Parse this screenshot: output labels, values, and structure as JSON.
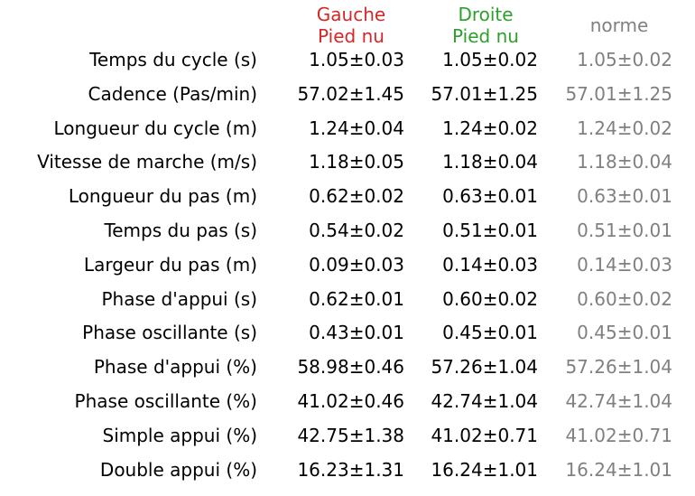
{
  "header": {
    "left": {
      "line1": "Gauche",
      "line2": "Pied nu"
    },
    "right": {
      "line1": "Droite",
      "line2": "Pied nu"
    },
    "norm": {
      "line1": "norme"
    }
  },
  "colors": {
    "left_header": "#d62728",
    "right_header": "#2ca02c",
    "norm": "#808080",
    "text": "#000000"
  },
  "rows": [
    {
      "label": "Temps du cycle (s)",
      "left": "1.05±0.03",
      "right": "1.05±0.02",
      "norm": "1.05±0.02"
    },
    {
      "label": "Cadence (Pas/min)",
      "left": "57.02±1.45",
      "right": "57.01±1.25",
      "norm": "57.01±1.25"
    },
    {
      "label": "Longueur du cycle (m)",
      "left": "1.24±0.04",
      "right": "1.24±0.02",
      "norm": "1.24±0.02"
    },
    {
      "label": "Vitesse de marche (m/s)",
      "left": "1.18±0.05",
      "right": "1.18±0.04",
      "norm": "1.18±0.04"
    },
    {
      "label": "Longueur du pas (m)",
      "left": "0.62±0.02",
      "right": "0.63±0.01",
      "norm": "0.63±0.01"
    },
    {
      "label": "Temps du pas (s)",
      "left": "0.54±0.02",
      "right": "0.51±0.01",
      "norm": "0.51±0.01"
    },
    {
      "label": "Largeur du pas (m)",
      "left": "0.09±0.03",
      "right": "0.14±0.03",
      "norm": "0.14±0.03"
    },
    {
      "label": "Phase d'appui (s)",
      "left": "0.62±0.01",
      "right": "0.60±0.02",
      "norm": "0.60±0.02"
    },
    {
      "label": "Phase oscillante (s)",
      "left": "0.43±0.01",
      "right": "0.45±0.01",
      "norm": "0.45±0.01"
    },
    {
      "label": "Phase d'appui (%)",
      "left": "58.98±0.46",
      "right": "57.26±1.04",
      "norm": "57.26±1.04"
    },
    {
      "label": "Phase oscillante (%)",
      "left": "41.02±0.46",
      "right": "42.74±1.04",
      "norm": "42.74±1.04"
    },
    {
      "label": "Simple appui (%)",
      "left": "42.75±1.38",
      "right": "41.02±0.71",
      "norm": "41.02±0.71"
    },
    {
      "label": "Double appui (%)",
      "left": "16.23±1.31",
      "right": "16.24±1.01",
      "norm": "16.24±1.01"
    }
  ]
}
